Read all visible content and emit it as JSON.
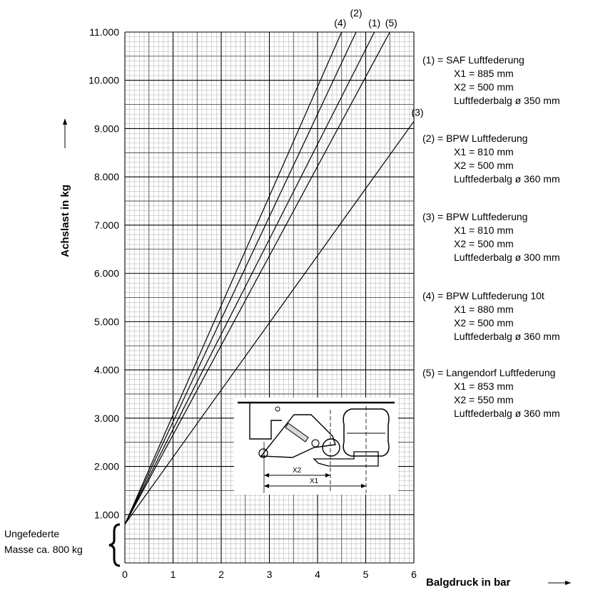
{
  "chart_data": {
    "type": "line",
    "xlabel": "Balgdruck in bar",
    "ylabel": "Achslast in kg",
    "xlim": [
      0,
      6
    ],
    "ylim": [
      0,
      11000
    ],
    "x_ticks": [
      0,
      1,
      2,
      3,
      4,
      5,
      6
    ],
    "x_tick_labels": [
      "0",
      "1",
      "2",
      "3",
      "4",
      "5",
      "6"
    ],
    "y_ticks": [
      1000,
      2000,
      3000,
      4000,
      5000,
      6000,
      7000,
      8000,
      9000,
      10000,
      11000
    ],
    "y_tick_labels": [
      "1.000",
      "2.000",
      "3.000",
      "4.000",
      "5.000",
      "6.000",
      "7.000",
      "8.000",
      "9.000",
      "10.000",
      "11.000"
    ],
    "grid": true,
    "series": [
      {
        "name": "(1)",
        "x": [
          0,
          5.18
        ],
        "y": [
          800,
          11000
        ]
      },
      {
        "name": "(2)",
        "x": [
          0,
          4.8
        ],
        "y": [
          800,
          11000
        ]
      },
      {
        "name": "(3)",
        "x": [
          0,
          6.0
        ],
        "y": [
          800,
          9150
        ]
      },
      {
        "name": "(4)",
        "x": [
          0,
          4.5
        ],
        "y": [
          800,
          11000
        ]
      },
      {
        "name": "(5)",
        "x": [
          0,
          5.5
        ],
        "y": [
          800,
          11000
        ]
      }
    ],
    "legend": [
      {
        "header": "(1) = SAF Luftfederung",
        "x1": "X1 = 885 mm",
        "x2": "X2 = 500 mm",
        "balg": "Luftfederbalg ø 350 mm"
      },
      {
        "header": "(2) = BPW Luftfederung",
        "x1": "X1 = 810 mm",
        "x2": "X2 = 500 mm",
        "balg": "Luftfederbalg ø 360 mm"
      },
      {
        "header": "(3) = BPW Luftfederung",
        "x1": "X1 = 810 mm",
        "x2": "X2 = 500 mm",
        "balg": "Luftfederbalg ø 300 mm"
      },
      {
        "header": "(4) = BPW Luftfederung 10t",
        "x1": "X1 = 880 mm",
        "x2": "X2 = 500 mm",
        "balg": "Luftfederbalg ø 360 mm"
      },
      {
        "header": "(5) = Langendorf Luftfederung",
        "x1": "X1 = 853 mm",
        "x2": "X2 = 550 mm",
        "balg": "Luftfederbalg ø 360 mm"
      }
    ],
    "annotation": {
      "line1": "Ungefederte",
      "line2": "Masse ca. 800 kg",
      "value": 800
    },
    "inset": {
      "x2_label": "X2",
      "x1_label": "X1"
    }
  }
}
